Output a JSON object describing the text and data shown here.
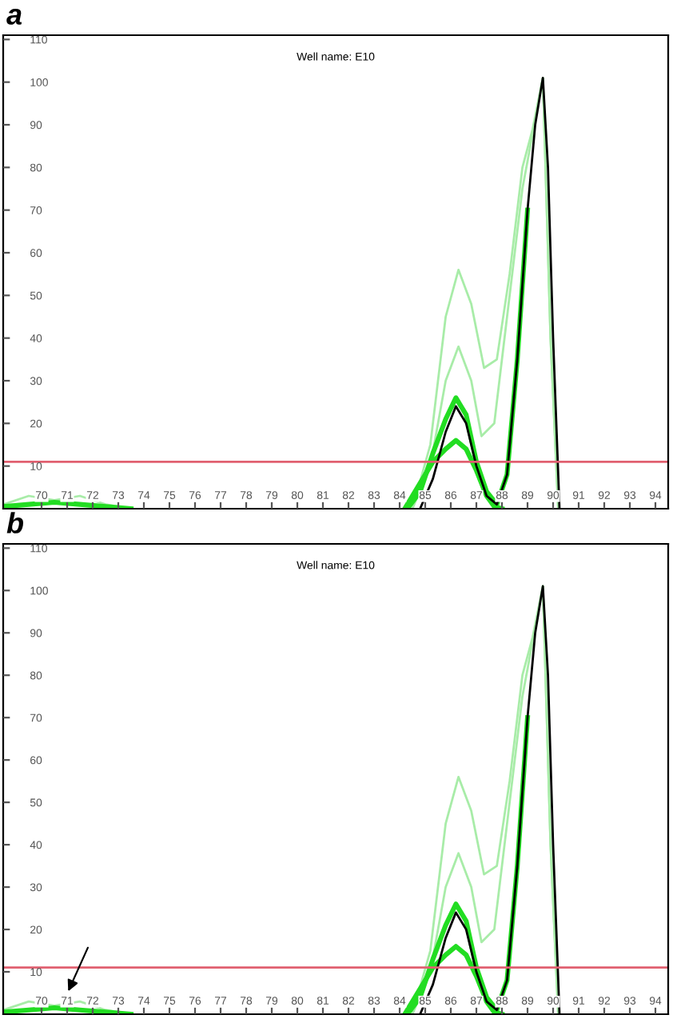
{
  "chart_data": [
    {
      "type": "line",
      "title": "Well name: E10",
      "annotations": [
        "a"
      ],
      "xlim": [
        68.5,
        94.5
      ],
      "ylim": [
        0,
        111
      ],
      "xticks": [
        70,
        71,
        72,
        73,
        74,
        75,
        76,
        77,
        78,
        79,
        80,
        81,
        82,
        83,
        84,
        85,
        86,
        87,
        88,
        89,
        90,
        91,
        92,
        93,
        94
      ],
      "yticks": [
        10,
        20,
        30,
        40,
        50,
        60,
        70,
        80,
        90,
        100,
        110
      ],
      "grid": false,
      "marker": "none",
      "line_style": "solid",
      "ref_lines": [
        {
          "axis": "y",
          "value": 11,
          "color": "#e06070"
        }
      ],
      "series": [
        {
          "color": "#a8eca8",
          "x": [
            84.5,
            85.2,
            85.8,
            86.3,
            86.8,
            87.3,
            87.8,
            88.3,
            88.8,
            89.2,
            89.6,
            89.9,
            90.2
          ],
          "values": [
            0,
            15,
            45,
            56,
            48,
            33,
            35,
            55,
            80,
            89,
            101,
            40,
            0
          ]
        },
        {
          "color": "#a8eca8",
          "x": [
            84.5,
            85.2,
            85.8,
            86.3,
            86.8,
            87.2,
            87.7,
            88.2,
            88.8,
            89.2,
            89.6,
            89.9,
            90.2
          ],
          "values": [
            0,
            10,
            30,
            38,
            30,
            17,
            20,
            45,
            75,
            88,
            101,
            40,
            0
          ]
        },
        {
          "color": "#22dd22",
          "x": [
            84.2,
            84.8,
            85.3,
            85.8,
            86.2,
            86.6,
            87.0,
            87.4,
            87.7,
            88.0
          ],
          "values": [
            0,
            6,
            11,
            14,
            16,
            14,
            9,
            3,
            0.5,
            0
          ]
        },
        {
          "color": "#22dd22",
          "x": [
            84.3,
            84.8,
            85.3,
            85.8,
            86.2,
            86.6,
            87.0,
            87.4,
            87.8,
            88.2,
            88.6,
            89.0
          ],
          "values": [
            0,
            4,
            13,
            21,
            26,
            22,
            11,
            4,
            1,
            8,
            35,
            70
          ]
        },
        {
          "color": "#a8eca8",
          "x": [
            68.5,
            69.5,
            70.5,
            71.5,
            72.5,
            73.5
          ],
          "values": [
            1,
            3,
            2,
            3,
            1,
            0
          ]
        },
        {
          "color": "#22dd22",
          "x": [
            68.5,
            69.5,
            70.5,
            71.5,
            72.5,
            73.5
          ],
          "values": [
            0.5,
            1,
            1.5,
            1,
            0.5,
            0
          ]
        },
        {
          "color": "#000000",
          "x": [
            84.8,
            85.3,
            85.8,
            86.2,
            86.6,
            87.0,
            87.4,
            87.8,
            88.2,
            88.6,
            89.0,
            89.3,
            89.6,
            89.8,
            90.0,
            90.25
          ],
          "values": [
            0,
            7,
            18,
            24,
            20,
            10,
            3,
            1,
            8,
            35,
            70,
            90,
            101,
            80,
            40,
            0
          ]
        }
      ]
    },
    {
      "type": "line",
      "title": "Well name: E10",
      "annotations": [
        "b"
      ],
      "xlim": [
        68.5,
        94.5
      ],
      "ylim": [
        0,
        111
      ],
      "xticks": [
        70,
        71,
        72,
        73,
        74,
        75,
        76,
        77,
        78,
        79,
        80,
        81,
        82,
        83,
        84,
        85,
        86,
        87,
        88,
        89,
        90,
        91,
        92,
        93,
        94
      ],
      "yticks": [
        10,
        20,
        30,
        40,
        50,
        60,
        70,
        80,
        90,
        100,
        110
      ],
      "grid": false,
      "marker": "none",
      "line_style": "solid",
      "ref_lines": [
        {
          "axis": "y",
          "value": 11,
          "color": "#e06070"
        }
      ],
      "series": [
        {
          "color": "#a8eca8",
          "x": [
            84.5,
            85.2,
            85.8,
            86.3,
            86.8,
            87.3,
            87.8,
            88.3,
            88.8,
            89.2,
            89.6,
            89.9,
            90.2
          ],
          "values": [
            0,
            15,
            45,
            56,
            48,
            33,
            35,
            55,
            80,
            89,
            101,
            40,
            0
          ]
        },
        {
          "color": "#a8eca8",
          "x": [
            84.5,
            85.2,
            85.8,
            86.3,
            86.8,
            87.2,
            87.7,
            88.2,
            88.8,
            89.2,
            89.6,
            89.9,
            90.2
          ],
          "values": [
            0,
            10,
            30,
            38,
            30,
            17,
            20,
            45,
            75,
            88,
            101,
            40,
            0
          ]
        },
        {
          "color": "#22dd22",
          "x": [
            84.2,
            84.8,
            85.3,
            85.8,
            86.2,
            86.6,
            87.0,
            87.4,
            87.7,
            88.0
          ],
          "values": [
            0,
            6,
            11,
            14,
            16,
            14,
            9,
            3,
            0.5,
            0
          ]
        },
        {
          "color": "#22dd22",
          "x": [
            84.3,
            84.8,
            85.3,
            85.8,
            86.2,
            86.6,
            87.0,
            87.4,
            87.8,
            88.2,
            88.6,
            89.0
          ],
          "values": [
            0,
            4,
            13,
            21,
            26,
            22,
            11,
            4,
            1,
            8,
            35,
            70
          ]
        },
        {
          "color": "#a8eca8",
          "x": [
            68.5,
            69.5,
            70.5,
            71.5,
            72.5,
            73.5
          ],
          "values": [
            1,
            3,
            2,
            3,
            1,
            0
          ]
        },
        {
          "color": "#22dd22",
          "x": [
            68.5,
            69.5,
            70.5,
            71.5,
            72.5,
            73.5
          ],
          "values": [
            0.5,
            1,
            1.5,
            1,
            0.5,
            0
          ]
        },
        {
          "color": "#000000",
          "x": [
            84.8,
            85.3,
            85.8,
            86.2,
            86.6,
            87.0,
            87.4,
            87.8,
            88.2,
            88.6,
            89.0,
            89.3,
            89.6,
            89.8,
            90.0,
            90.25
          ],
          "values": [
            0,
            7,
            18,
            24,
            20,
            10,
            3,
            1,
            8,
            35,
            70,
            90,
            101,
            80,
            40,
            0
          ]
        }
      ]
    }
  ]
}
